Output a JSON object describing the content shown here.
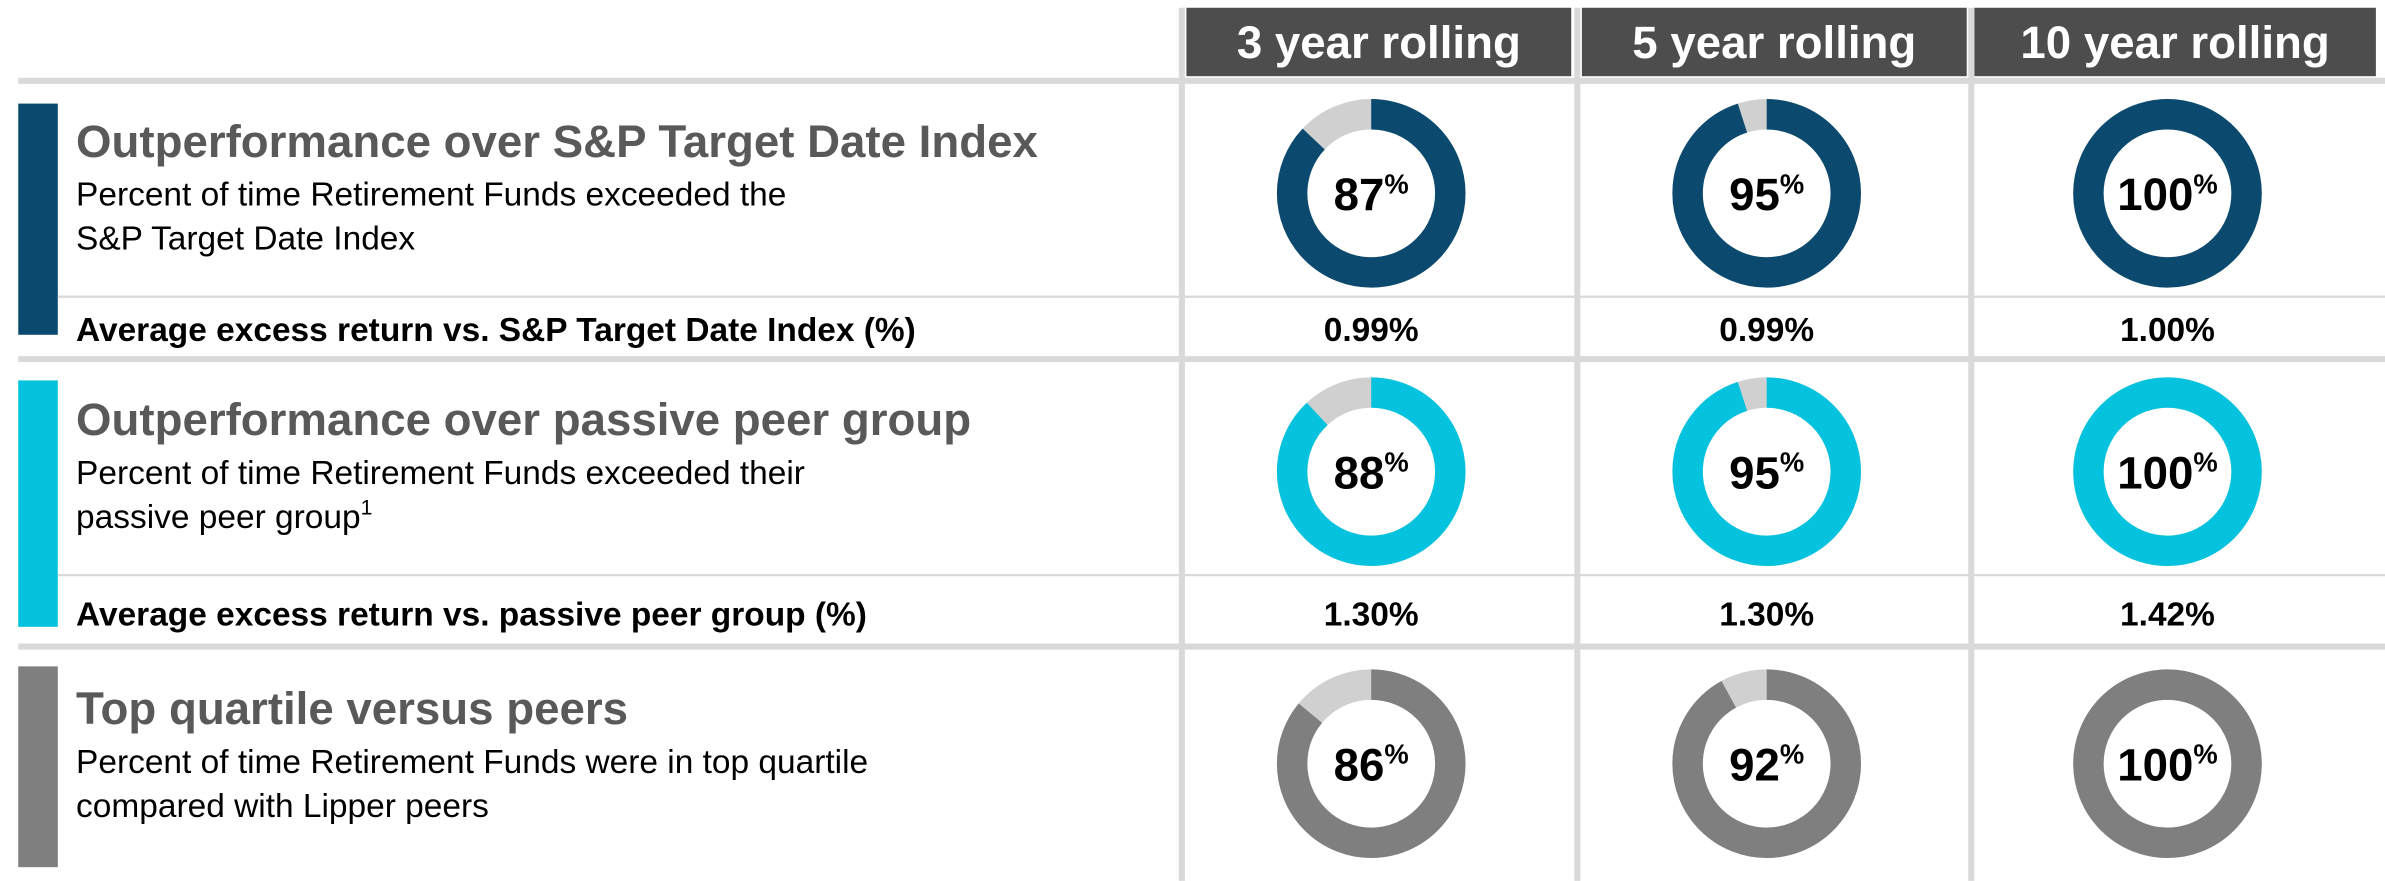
{
  "columns": [
    "3 year rolling",
    "5 year rolling",
    "10 year rolling"
  ],
  "unit": "%",
  "sections": [
    {
      "title": "Outperformance over S&P Target Date Index",
      "subtitle": [
        "Percent of time Retirement Funds exceeded the",
        "S&P Target Date Index"
      ],
      "color": "#0b4a6e",
      "values": [
        87,
        95,
        100
      ],
      "excess_label": "Average excess return vs. S&P Target Date Index (%)",
      "excess_values": [
        "0.99%",
        "0.99%",
        "1.00%"
      ]
    },
    {
      "title": "Outperformance over passive peer group",
      "subtitle": [
        "Percent of time Retirement Funds exceeded their",
        "passive peer group"
      ],
      "footnote_ref": "1",
      "color": "#05c3de",
      "values": [
        88,
        95,
        100
      ],
      "excess_label": "Average excess return vs. passive peer group (%)",
      "excess_values": [
        "1.30%",
        "1.30%",
        "1.42%"
      ]
    },
    {
      "title": "Top quartile versus peers",
      "subtitle": [
        "Percent of time Retirement Funds were in top quartile",
        "compared with Lipper peers"
      ],
      "color": "#7f7f7f",
      "values": [
        86,
        92,
        100
      ]
    }
  ]
}
